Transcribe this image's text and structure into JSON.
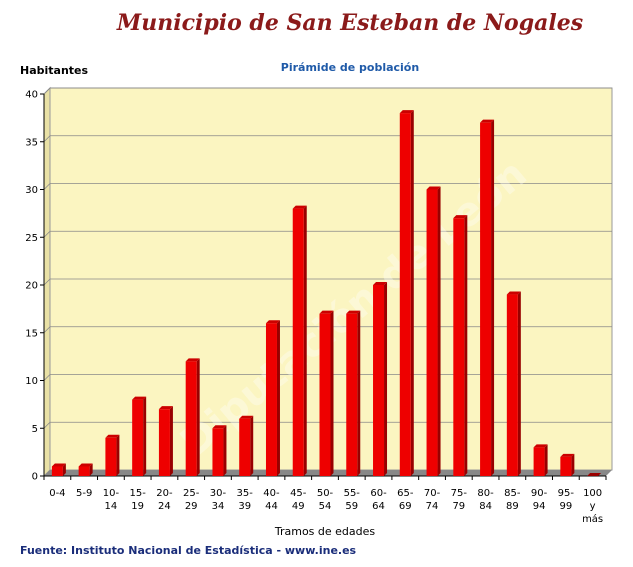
{
  "title": "Municipio de San Esteban de Nogales",
  "source": "Fuente: Instituto Nacional de Estadística - www.ine.es",
  "watermark": "Diputación de León",
  "colors": {
    "plot_background": "#fbf5c1",
    "bar_front": "#ee0000",
    "bar_side": "#990000",
    "bar_top": "#cc0000",
    "floor": "#888888",
    "grid": "#888888",
    "title": "#8b1a1a",
    "subtitle": "#1f5aa8",
    "source": "#1a2d7a"
  },
  "chart_data": {
    "type": "bar",
    "title": "Pirámide de población",
    "xlabel": "Tramos de edades",
    "ylabel": "Habitantes",
    "ylim": [
      0,
      40
    ],
    "yticks": [
      0,
      5,
      10,
      15,
      20,
      25,
      30,
      35,
      40
    ],
    "grid": true,
    "categories": [
      [
        "0-4"
      ],
      [
        "5-9"
      ],
      [
        "10-",
        "14"
      ],
      [
        "15-",
        "19"
      ],
      [
        "20-",
        "24"
      ],
      [
        "25-",
        "29"
      ],
      [
        "30-",
        "34"
      ],
      [
        "35-",
        "39"
      ],
      [
        "40-",
        "44"
      ],
      [
        "45-",
        "49"
      ],
      [
        "50-",
        "54"
      ],
      [
        "55-",
        "59"
      ],
      [
        "60-",
        "64"
      ],
      [
        "65-",
        "69"
      ],
      [
        "70-",
        "74"
      ],
      [
        "75-",
        "79"
      ],
      [
        "80-",
        "84"
      ],
      [
        "85-",
        "89"
      ],
      [
        "90-",
        "94"
      ],
      [
        "95-",
        "99"
      ],
      [
        "100",
        "y",
        "más"
      ]
    ],
    "values": [
      1,
      1,
      4,
      8,
      7,
      12,
      5,
      6,
      16,
      28,
      17,
      17,
      20,
      38,
      30,
      27,
      37,
      19,
      3,
      2,
      0
    ]
  }
}
